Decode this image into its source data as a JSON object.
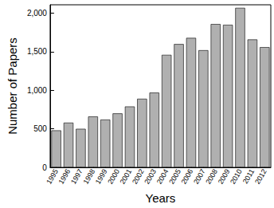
{
  "chart_data": {
    "type": "bar",
    "x_label": "Years",
    "y_label": "Number of Papers",
    "categories": [
      "1995",
      "1996",
      "1997",
      "1998",
      "1999",
      "2000",
      "2001",
      "2002",
      "2003",
      "2004",
      "2005",
      "2006",
      "2007",
      "2008",
      "2009",
      "2010",
      "2011",
      "2012"
    ],
    "values": [
      480,
      580,
      500,
      660,
      620,
      700,
      790,
      890,
      970,
      1460,
      1600,
      1680,
      1520,
      1860,
      1850,
      2070,
      1660,
      1560
    ],
    "color": "#b0b0b0",
    "ylim": [
      0,
      2110
    ],
    "yticks": [
      0,
      500,
      1000,
      1500,
      2000
    ],
    "grid": false
  }
}
